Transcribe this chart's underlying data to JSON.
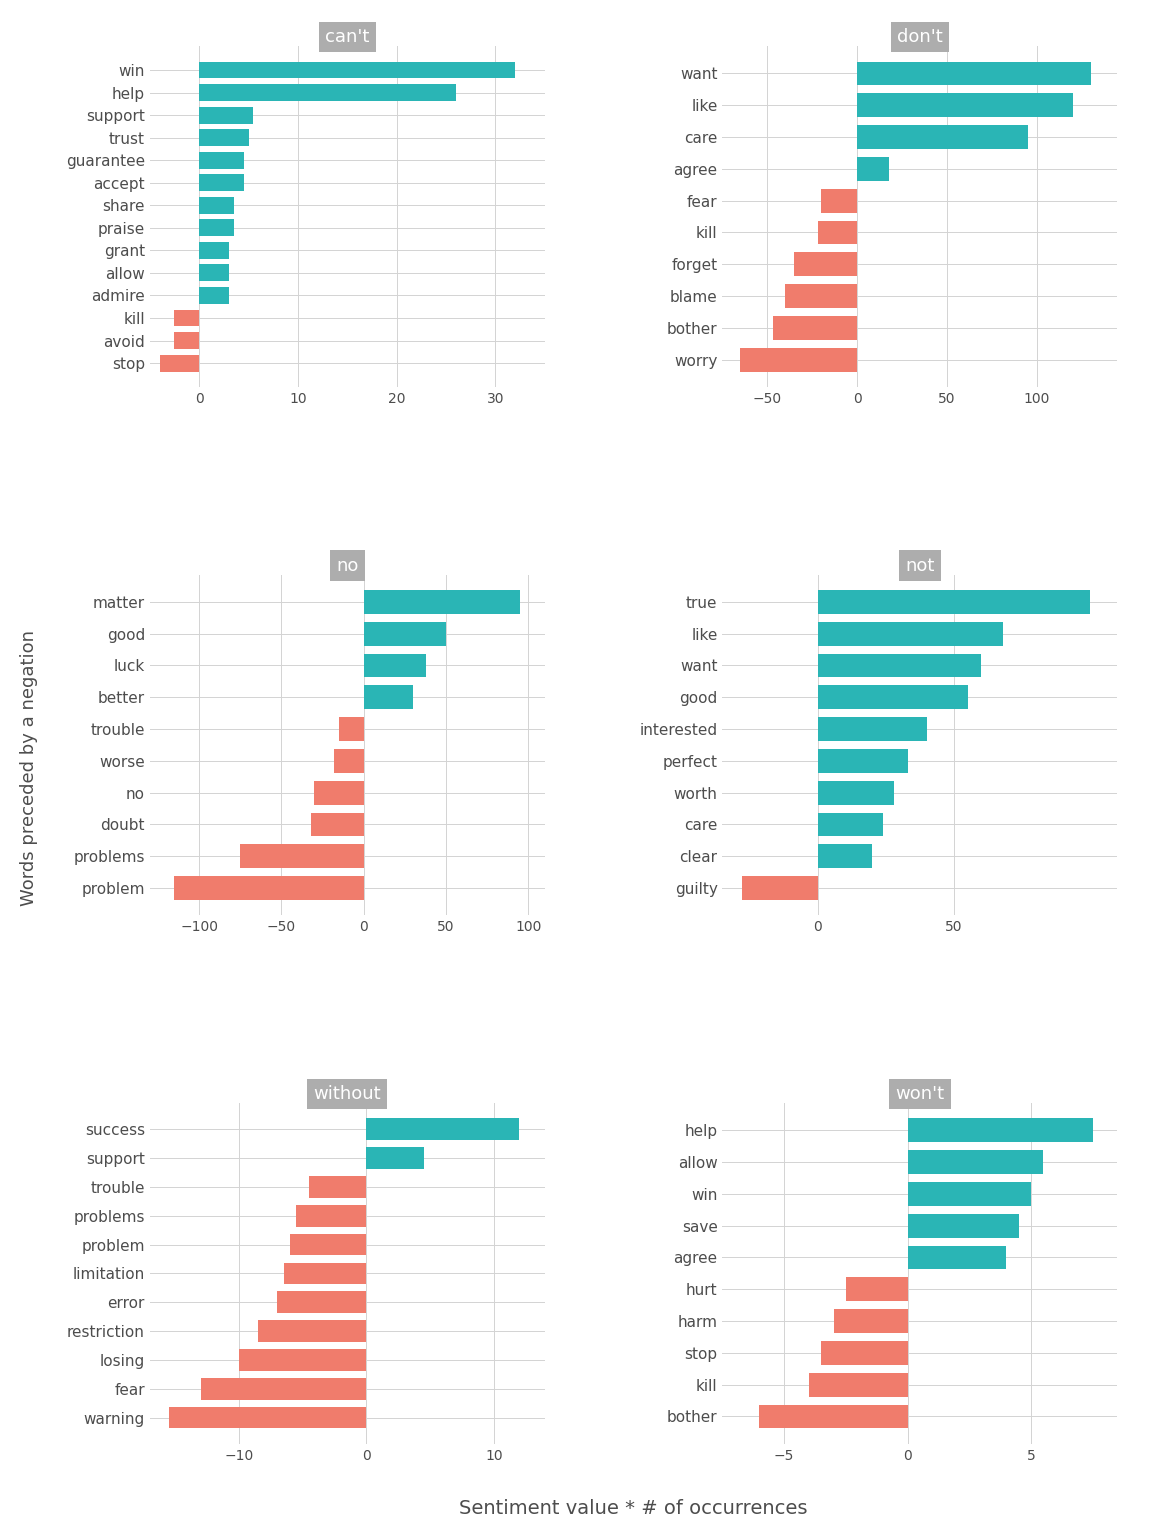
{
  "panels": [
    {
      "title": "can't",
      "words": [
        "win",
        "help",
        "support",
        "trust",
        "guarantee",
        "accept",
        "share",
        "praise",
        "grant",
        "allow",
        "admire",
        "kill",
        "avoid",
        "stop"
      ],
      "values": [
        32,
        26,
        5.5,
        5.0,
        4.5,
        4.5,
        3.5,
        3.5,
        3.0,
        3.0,
        3.0,
        -2.5,
        -2.5,
        -4.0
      ],
      "xlim": [
        -5,
        35
      ],
      "xticks": [
        0,
        10,
        20,
        30
      ]
    },
    {
      "title": "don't",
      "words": [
        "want",
        "like",
        "care",
        "agree",
        "fear",
        "kill",
        "forget",
        "blame",
        "bother",
        "worry"
      ],
      "values": [
        130,
        120,
        95,
        18,
        -20,
        -22,
        -35,
        -40,
        -47,
        -65
      ],
      "xlim": [
        -75,
        145
      ],
      "xticks": [
        -50,
        0,
        50,
        100
      ]
    },
    {
      "title": "no",
      "words": [
        "matter",
        "good",
        "luck",
        "better",
        "trouble",
        "worse",
        "no",
        "doubt",
        "problems",
        "problem"
      ],
      "values": [
        95,
        50,
        38,
        30,
        -15,
        -18,
        -30,
        -32,
        -75,
        -115
      ],
      "xlim": [
        -130,
        110
      ],
      "xticks": [
        -100,
        -50,
        0,
        50,
        100
      ]
    },
    {
      "title": "not",
      "words": [
        "true",
        "like",
        "want",
        "good",
        "interested",
        "perfect",
        "worth",
        "care",
        "clear",
        "guilty"
      ],
      "values": [
        100,
        68,
        60,
        55,
        40,
        33,
        28,
        24,
        20,
        -28
      ],
      "xlim": [
        -35,
        110
      ],
      "xticks": [
        0,
        50
      ]
    },
    {
      "title": "without",
      "words": [
        "success",
        "support",
        "trouble",
        "problems",
        "problem",
        "limitation",
        "error",
        "restriction",
        "losing",
        "fear",
        "warning"
      ],
      "values": [
        12,
        4.5,
        -4.5,
        -5.5,
        -6.0,
        -6.5,
        -7.0,
        -8.5,
        -10.0,
        -13.0,
        -15.5
      ],
      "xlim": [
        -17,
        14
      ],
      "xticks": [
        -10,
        0,
        10
      ]
    },
    {
      "title": "won't",
      "words": [
        "help",
        "allow",
        "win",
        "save",
        "agree",
        "hurt",
        "harm",
        "stop",
        "kill",
        "bother"
      ],
      "values": [
        7.5,
        5.5,
        5.0,
        4.5,
        4.0,
        -2.5,
        -3.0,
        -3.5,
        -4.0,
        -6.0
      ],
      "xlim": [
        -7.5,
        8.5
      ],
      "xticks": [
        -5,
        0,
        5
      ]
    }
  ],
  "pos_color": "#2ab5b5",
  "neg_color": "#f07c6c",
  "panel_title_bg": "#adadad",
  "panel_title_color": "white",
  "bg_color": "#ffffff",
  "plot_bg_color": "#ffffff",
  "grid_color": "#d3d3d3",
  "label_color": "#4d4d4d",
  "ylabel": "Words preceded by a negation",
  "xlabel": "Sentiment value * # of occurrences"
}
